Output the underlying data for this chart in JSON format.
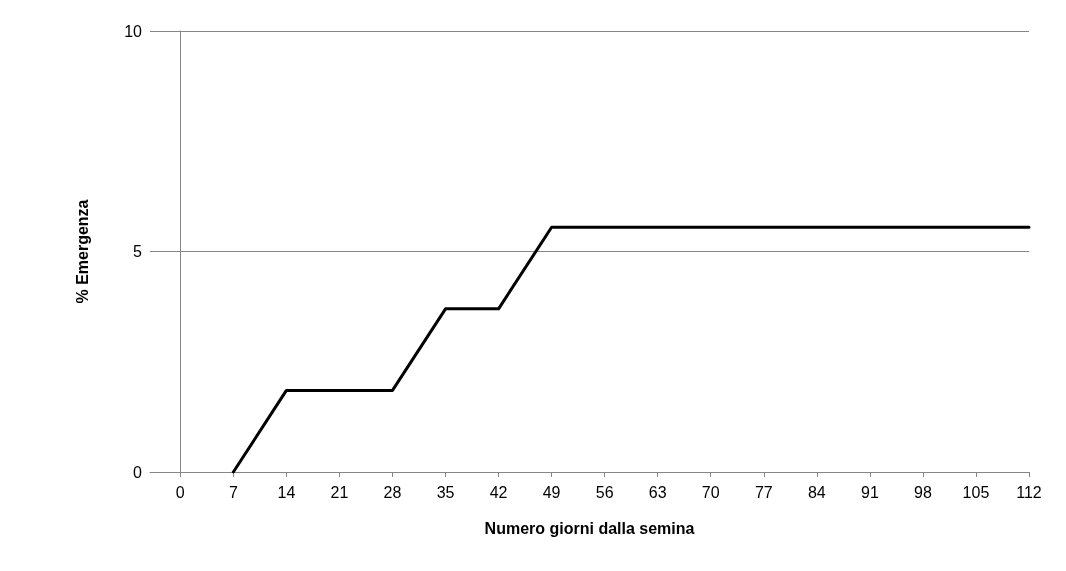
{
  "chart_data": {
    "type": "line",
    "xlabel": "Numero giorni dalla semina",
    "ylabel": "% Emergenza",
    "x": [
      7,
      14,
      21,
      28,
      35,
      42,
      49,
      56,
      63,
      70,
      77,
      84,
      91,
      98,
      105,
      112
    ],
    "series": [
      {
        "color": "#000000",
        "values": [
          0,
          1.85,
          1.85,
          1.85,
          3.7,
          3.7,
          5.55,
          5.55,
          5.55,
          5.55,
          5.55,
          5.55,
          5.55,
          5.55,
          5.55,
          5.55
        ]
      }
    ],
    "xlim": [
      -4,
      112
    ],
    "xticks": [
      0,
      7,
      14,
      21,
      28,
      35,
      42,
      49,
      56,
      63,
      70,
      77,
      84,
      91,
      98,
      105,
      112
    ],
    "ylim": [
      0,
      10
    ],
    "yticks": [
      0,
      5,
      10
    ],
    "grid": "y",
    "marker": "none",
    "line_style": "solid"
  }
}
